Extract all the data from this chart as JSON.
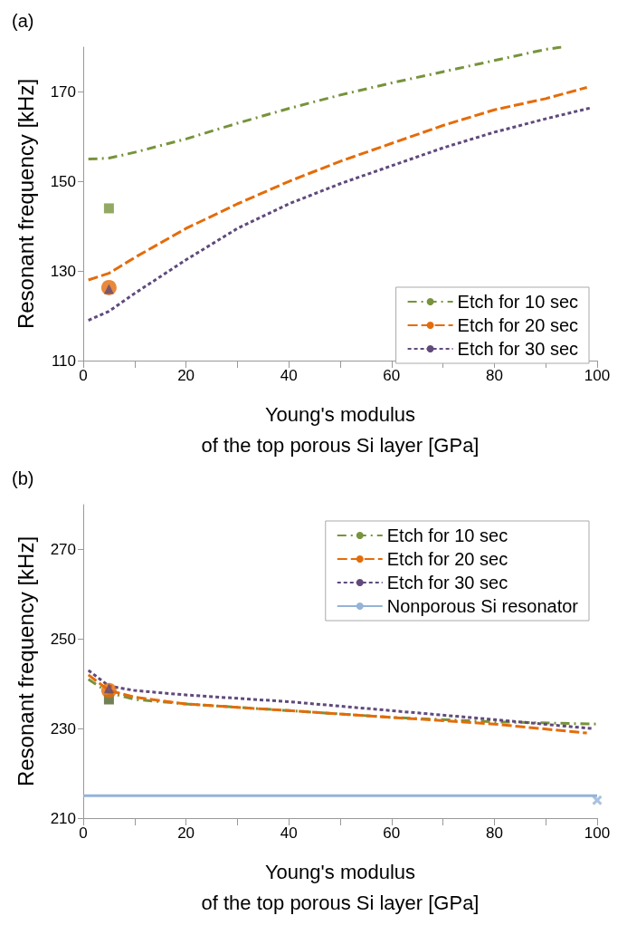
{
  "chart_data": [
    {
      "type": "line",
      "title": "(a)",
      "xlabel": "Young's modulus\nof the top porous Si layer [GPa]",
      "ylabel": "Resonant frequency [kHz]",
      "xlim": [
        0,
        100
      ],
      "xticks": [
        0,
        {
          "value": 10,
          "label": null
        },
        20,
        {
          "value": 30,
          "label": null
        },
        40,
        {
          "value": 50,
          "label": null
        },
        60,
        {
          "value": 70,
          "label": null
        },
        80,
        {
          "value": 90,
          "label": null
        },
        100
      ],
      "ylim": [
        110,
        180
      ],
      "yticks": [
        110,
        130,
        150,
        170
      ],
      "grid": false,
      "legend": "bottom right",
      "marker": "none",
      "series": [
        {
          "name": "Etch for 10 sec",
          "color": "#77933c",
          "line_style": "dashdot",
          "x": [
            1,
            5,
            10,
            20,
            30,
            40,
            50,
            60,
            70,
            80,
            90,
            93
          ],
          "values": [
            155,
            155.2,
            156.5,
            159.5,
            163,
            166.3,
            169.3,
            172,
            174.5,
            177,
            179.5,
            180
          ]
        },
        {
          "name": "Etch for 20 sec",
          "color": "#e46c0a",
          "line_style": "dashed",
          "x": [
            1,
            5,
            10,
            20,
            30,
            40,
            50,
            60,
            70,
            80,
            90,
            98
          ],
          "values": [
            128,
            129.5,
            133,
            139.5,
            145,
            150,
            154.5,
            158.5,
            162.5,
            166,
            168.5,
            171
          ]
        },
        {
          "name": "Etch for 30 sec",
          "color": "#604a7b",
          "line_style": "dotted",
          "x": [
            1,
            5,
            10,
            20,
            30,
            40,
            50,
            60,
            70,
            80,
            90,
            99
          ],
          "values": [
            119,
            121,
            125,
            132.5,
            139.5,
            145,
            149.5,
            153.5,
            157.5,
            161,
            164,
            166.5
          ]
        },
        {
          "type": "scatter",
          "marker": "square",
          "color": "#77933c",
          "x": [
            5
          ],
          "values": [
            144
          ]
        },
        {
          "type": "scatter",
          "marker": "circle",
          "color": "#e46c0a",
          "x": [
            5
          ],
          "values": [
            126.3
          ]
        },
        {
          "type": "scatter",
          "marker": "triangle",
          "color": "#604a7b",
          "x": [
            5
          ],
          "values": [
            126
          ]
        }
      ]
    },
    {
      "type": "line",
      "title": "(b)",
      "xlabel": "Young's modulus\nof the top porous Si layer [GPa]",
      "ylabel": "Resonant frequency [kHz]",
      "xlim": [
        0,
        100
      ],
      "xticks": [
        0,
        {
          "value": 10,
          "label": null
        },
        20,
        {
          "value": 30,
          "label": null
        },
        40,
        {
          "value": 50,
          "label": null
        },
        60,
        {
          "value": 70,
          "label": null
        },
        80,
        {
          "value": 90,
          "label": null
        },
        100
      ],
      "ylim": [
        210,
        280
      ],
      "yticks": [
        210,
        230,
        250,
        270
      ],
      "grid": false,
      "legend": "top right",
      "marker": "none",
      "series": [
        {
          "name": "Etch for 10 sec",
          "color": "#77933c",
          "line_style": "dashdot",
          "x": [
            1,
            5,
            10,
            20,
            40,
            60,
            80,
            100
          ],
          "values": [
            241,
            238,
            236.5,
            235.5,
            234,
            232.5,
            231.5,
            231
          ]
        },
        {
          "name": "Etch for 20 sec",
          "color": "#e46c0a",
          "line_style": "dashed",
          "x": [
            1,
            5,
            10,
            20,
            40,
            60,
            80,
            98
          ],
          "values": [
            242,
            238.5,
            237,
            235.5,
            234,
            232.5,
            231,
            229
          ]
        },
        {
          "name": "Etch for 30 sec",
          "color": "#604a7b",
          "line_style": "dotted",
          "x": [
            1,
            5,
            10,
            20,
            40,
            60,
            80,
            99
          ],
          "values": [
            243,
            239.5,
            238.5,
            237.5,
            236,
            234,
            232,
            230
          ]
        },
        {
          "name": "Nonporous Si resonator",
          "color": "#95b3d7",
          "line_style": "solid",
          "x": [
            0,
            100
          ],
          "values": [
            215,
            215
          ]
        },
        {
          "type": "scatter",
          "marker": "square",
          "color": "#4f6228",
          "x": [
            5
          ],
          "values": [
            236.5
          ]
        },
        {
          "type": "scatter",
          "marker": "circle",
          "color": "#e46c0a",
          "x": [
            5
          ],
          "values": [
            238.5
          ]
        },
        {
          "type": "scatter",
          "marker": "triangle",
          "color": "#604a7b",
          "x": [
            5
          ],
          "values": [
            239
          ]
        },
        {
          "type": "scatter",
          "marker": "cross",
          "color": "#95b3d7",
          "x": [
            100
          ],
          "values": [
            214
          ]
        }
      ]
    }
  ]
}
